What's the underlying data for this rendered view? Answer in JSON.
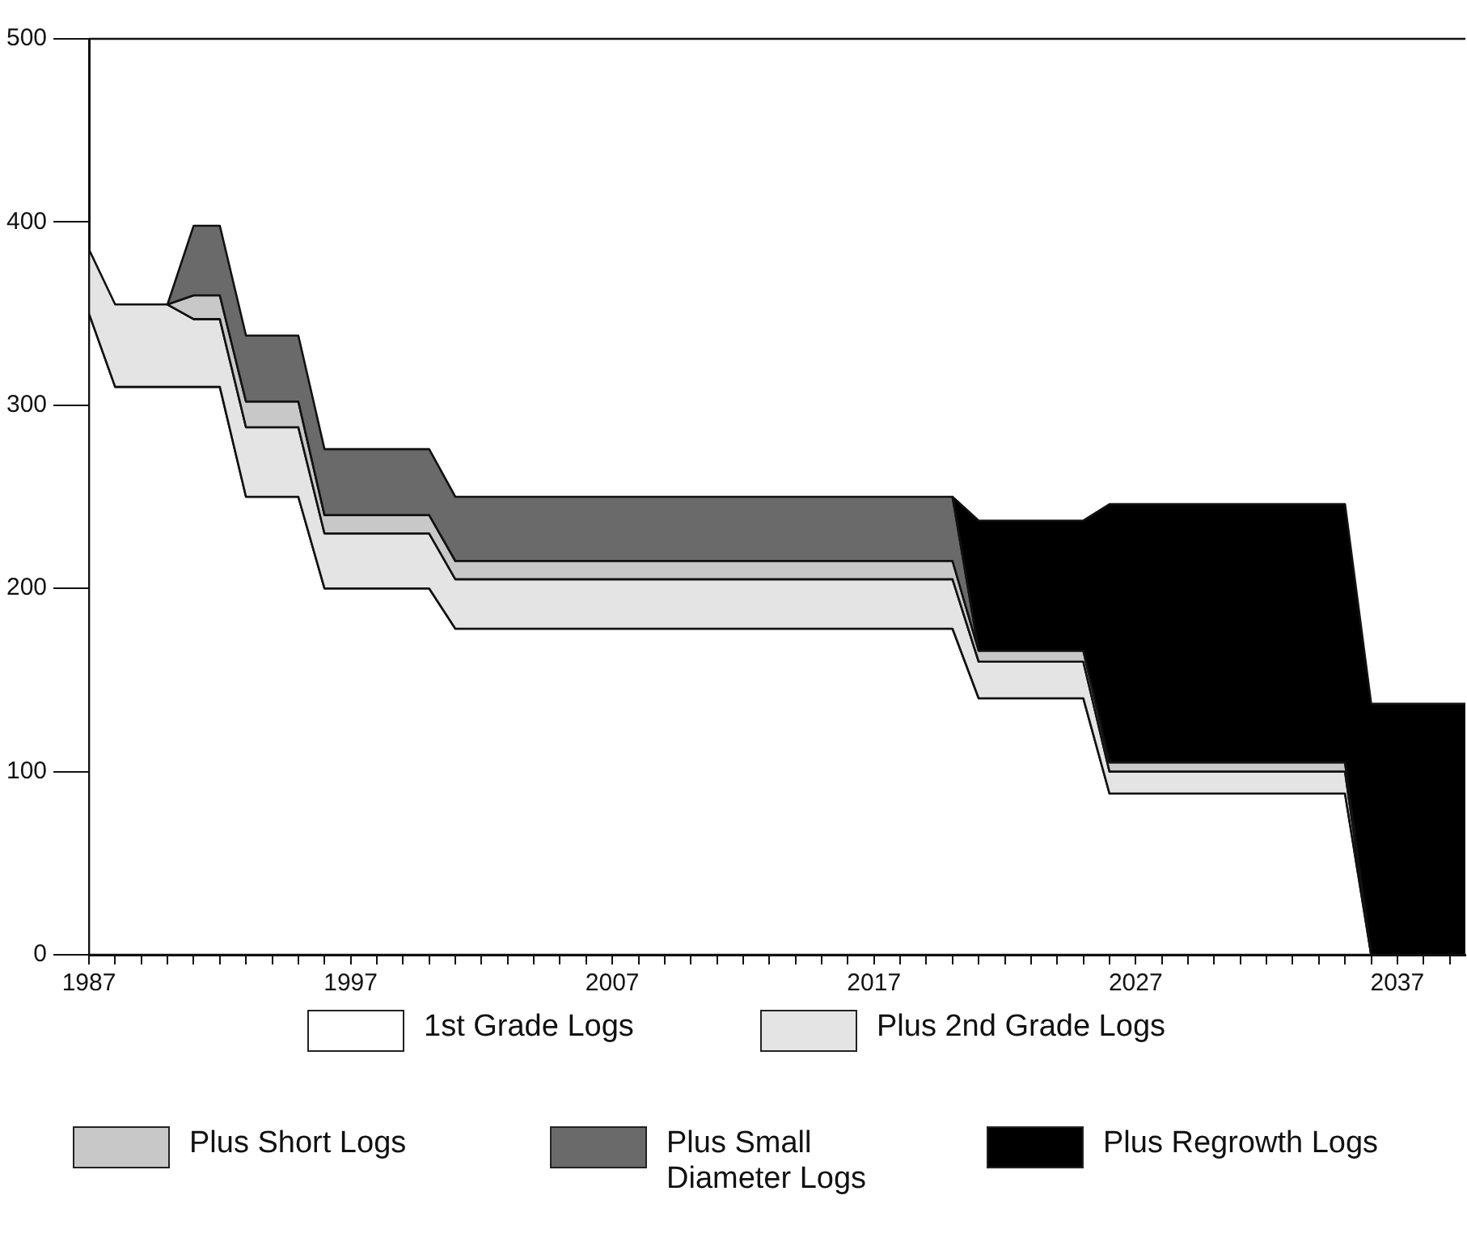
{
  "chart_data": {
    "type": "area",
    "stacked": true,
    "legend": "bottom",
    "grid": false,
    "marker": "none",
    "x": [
      1987,
      1988,
      1990,
      1991,
      1992,
      1993,
      1995,
      1996,
      2000,
      2001,
      2020,
      2021,
      2025,
      2026,
      2035,
      2036,
      2039.6
    ],
    "xlim": [
      1987,
      2039.6
    ],
    "xticks": [
      1987,
      {
        "value": 1988,
        "label": null
      },
      {
        "value": 1989,
        "label": null
      },
      {
        "value": 1990,
        "label": null
      },
      {
        "value": 1991,
        "label": null
      },
      {
        "value": 1992,
        "label": null
      },
      {
        "value": 1993,
        "label": null
      },
      {
        "value": 1994,
        "label": null
      },
      {
        "value": 1995,
        "label": null
      },
      {
        "value": 1996,
        "label": null
      },
      1997,
      {
        "value": 1998,
        "label": null
      },
      {
        "value": 1999,
        "label": null
      },
      {
        "value": 2000,
        "label": null
      },
      {
        "value": 2001,
        "label": null
      },
      {
        "value": 2002,
        "label": null
      },
      {
        "value": 2003,
        "label": null
      },
      {
        "value": 2004,
        "label": null
      },
      {
        "value": 2005,
        "label": null
      },
      {
        "value": 2006,
        "label": null
      },
      2007,
      {
        "value": 2008,
        "label": null
      },
      {
        "value": 2009,
        "label": null
      },
      {
        "value": 2010,
        "label": null
      },
      {
        "value": 2011,
        "label": null
      },
      {
        "value": 2012,
        "label": null
      },
      {
        "value": 2013,
        "label": null
      },
      {
        "value": 2014,
        "label": null
      },
      {
        "value": 2015,
        "label": null
      },
      {
        "value": 2016,
        "label": null
      },
      2017,
      {
        "value": 2018,
        "label": null
      },
      {
        "value": 2019,
        "label": null
      },
      {
        "value": 2020,
        "label": null
      },
      {
        "value": 2021,
        "label": null
      },
      {
        "value": 2022,
        "label": null
      },
      {
        "value": 2023,
        "label": null
      },
      {
        "value": 2024,
        "label": null
      },
      {
        "value": 2025,
        "label": null
      },
      {
        "value": 2026,
        "label": null
      },
      2027,
      {
        "value": 2028,
        "label": null
      },
      {
        "value": 2029,
        "label": null
      },
      {
        "value": 2030,
        "label": null
      },
      {
        "value": 2031,
        "label": null
      },
      {
        "value": 2032,
        "label": null
      },
      {
        "value": 2033,
        "label": null
      },
      {
        "value": 2034,
        "label": null
      },
      {
        "value": 2035,
        "label": null
      },
      {
        "value": 2036,
        "label": null
      },
      2037,
      {
        "value": 2038,
        "label": null
      },
      {
        "value": 2039,
        "label": null
      }
    ],
    "ylim": [
      0,
      500
    ],
    "yticks": [
      0,
      100,
      200,
      300,
      400,
      500
    ],
    "series": [
      {
        "name": "1st Grade Logs",
        "color": "#ffffff",
        "values": [
          350,
          310,
          310,
          310,
          310,
          250,
          250,
          200,
          200,
          178,
          178,
          140,
          140,
          88,
          88,
          0,
          0
        ]
      },
      {
        "name": "Plus 2nd Grade Logs",
        "color": "#e4e4e4",
        "values": [
          35,
          45,
          45,
          37,
          37,
          38,
          38,
          30,
          30,
          27,
          27,
          20,
          20,
          12,
          12,
          0,
          0
        ]
      },
      {
        "name": "Plus Short Logs",
        "color": "#c8c8c8",
        "values": [
          null,
          null,
          0,
          13,
          13,
          14,
          14,
          10,
          10,
          10,
          10,
          6,
          6,
          5,
          5,
          0,
          null
        ]
      },
      {
        "name": "Plus Small Diameter Logs",
        "color": "#6a6a6a",
        "values": [
          null,
          null,
          0,
          38,
          38,
          36,
          36,
          36,
          36,
          35,
          35,
          0,
          null,
          null,
          null,
          null,
          null
        ]
      },
      {
        "name": "Plus Regrowth Logs",
        "color": "#000000",
        "values": [
          null,
          null,
          null,
          null,
          null,
          null,
          null,
          null,
          null,
          null,
          0,
          71,
          71,
          141,
          141,
          137,
          137
        ]
      }
    ]
  }
}
